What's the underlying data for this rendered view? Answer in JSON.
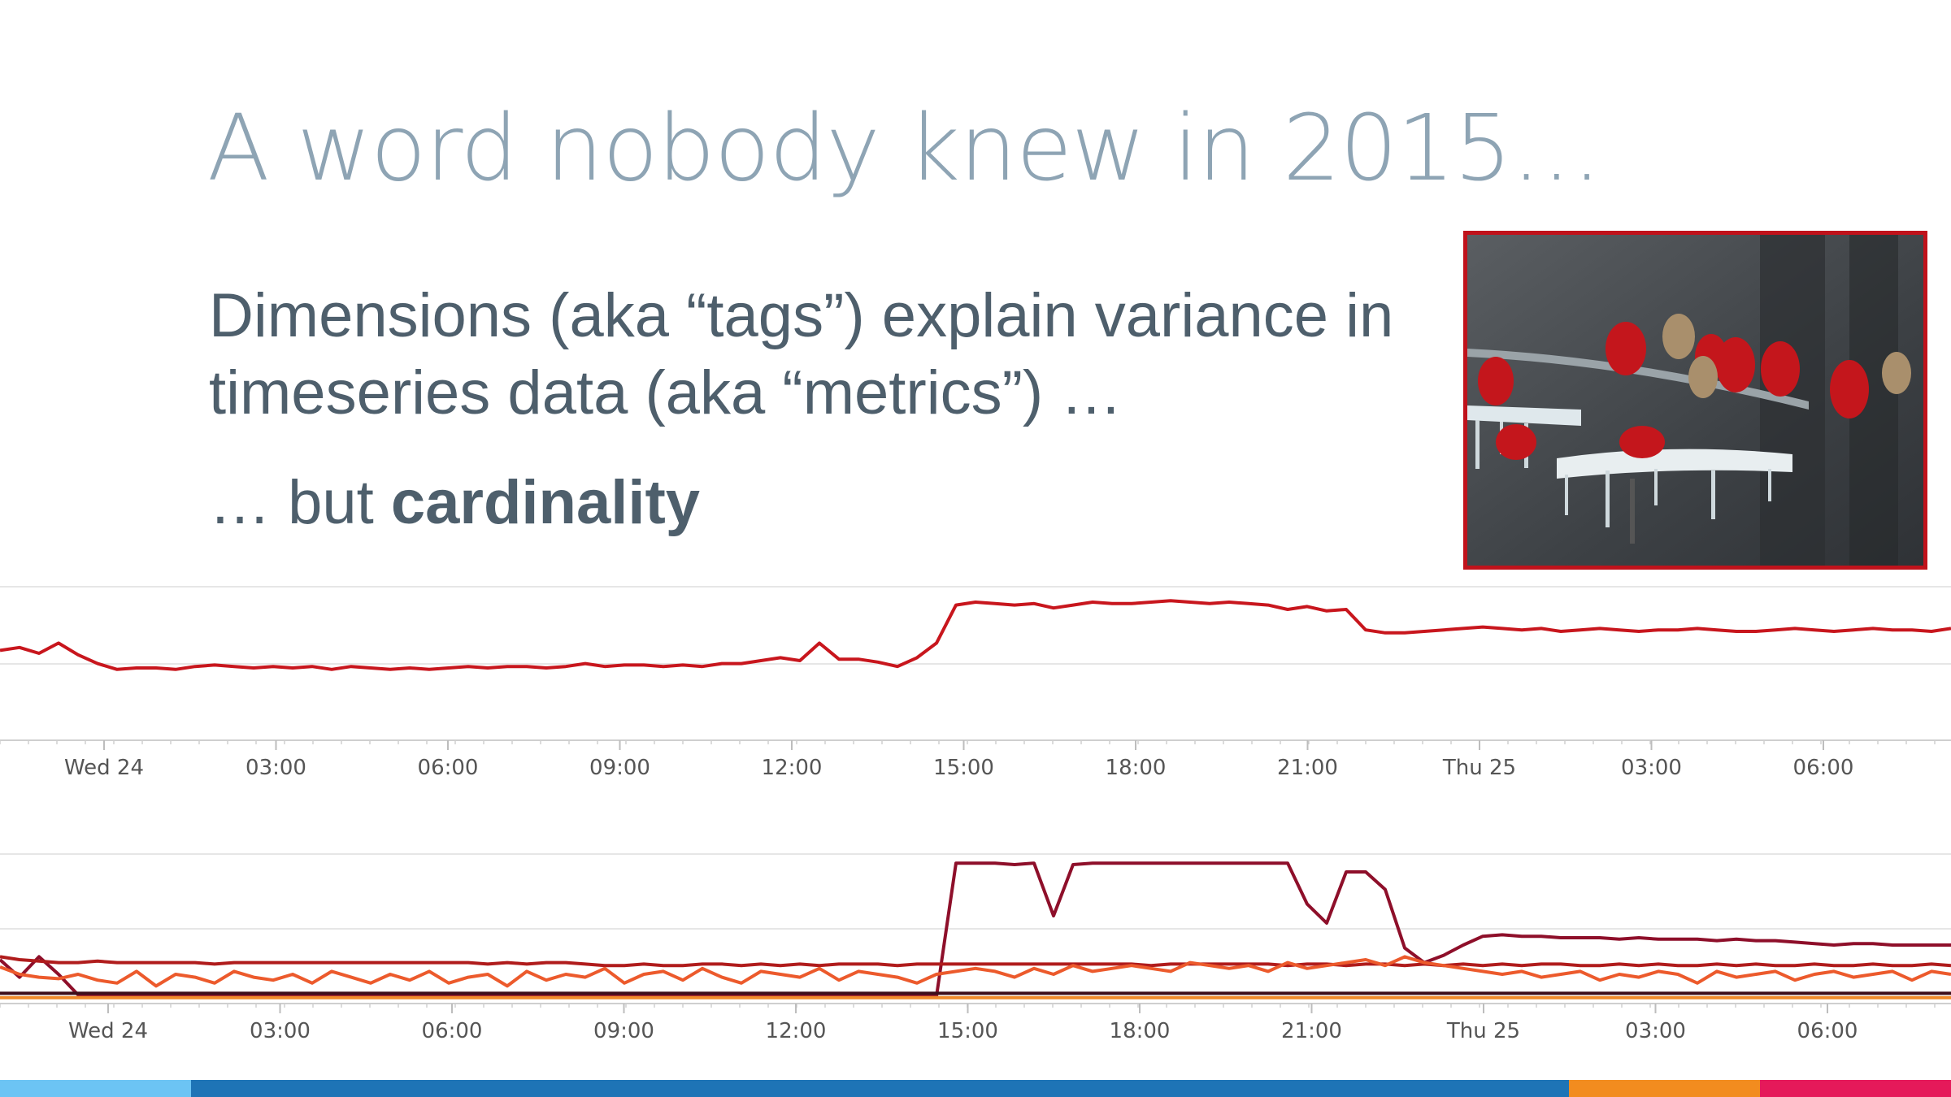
{
  "slide": {
    "title": "A word nobody knew in 2015…",
    "line1": "Dimensions (aka “tags”) explain variance in",
    "line2": "timeseries data (aka “metrics”) …",
    "line3_prefix": "… but ",
    "line3_bold": "cardinality"
  },
  "photo": {
    "icon": "cardinals-on-feeder-photo",
    "border_color": "#c0121b"
  },
  "chart_data": [
    {
      "type": "line",
      "x_tick_labels": [
        "Wed 24",
        "03:00",
        "06:00",
        "09:00",
        "12:00",
        "15:00",
        "18:00",
        "21:00",
        "Thu 25",
        "03:00",
        "06:00"
      ],
      "series": [
        {
          "color": "#c8161d",
          "values": [
            57,
            59,
            55,
            62,
            54,
            48,
            44,
            45,
            45,
            44,
            46,
            47,
            46,
            45,
            46,
            45,
            46,
            44,
            46,
            45,
            44,
            45,
            44,
            45,
            46,
            45,
            46,
            46,
            45,
            46,
            48,
            46,
            47,
            47,
            46,
            47,
            46,
            48,
            48,
            50,
            52,
            50,
            62,
            51,
            51,
            49,
            46,
            52,
            62,
            88,
            90,
            89,
            88,
            89,
            86,
            88,
            90,
            89,
            89,
            90,
            91,
            90,
            89,
            90,
            89,
            88,
            85,
            87,
            84,
            85,
            71,
            69,
            69,
            70,
            71,
            72,
            73,
            72,
            71,
            72,
            70,
            71,
            72,
            71,
            70,
            71,
            71,
            72,
            71,
            70,
            70,
            71,
            72,
            71,
            70,
            71,
            72,
            71,
            71,
            70,
            72
          ]
        }
      ]
    },
    {
      "type": "line",
      "x_tick_labels": [
        "Wed 24",
        "03:00",
        "06:00",
        "09:00",
        "12:00",
        "15:00",
        "18:00",
        "21:00",
        "Thu 25",
        "03:00",
        "06:00"
      ],
      "series": [
        {
          "color": "#8e0f2a",
          "values": [
            30,
            18,
            32,
            20,
            6,
            5,
            5,
            5,
            5,
            5,
            5,
            5,
            5,
            5,
            5,
            5,
            5,
            5,
            5,
            5,
            5,
            5,
            5,
            5,
            5,
            5,
            5,
            5,
            5,
            5,
            5,
            5,
            5,
            5,
            5,
            5,
            5,
            5,
            5,
            5,
            5,
            5,
            5,
            5,
            5,
            5,
            5,
            5,
            5,
            96,
            96,
            96,
            95,
            96,
            60,
            95,
            96,
            96,
            96,
            96,
            96,
            96,
            96,
            96,
            96,
            96,
            96,
            68,
            55,
            90,
            90,
            78,
            38,
            28,
            33,
            40,
            46,
            47,
            46,
            46,
            45,
            45,
            45,
            44,
            45,
            44,
            44,
            44,
            43,
            44,
            43,
            43,
            42,
            41,
            40,
            41,
            41,
            40,
            40,
            40,
            40
          ]
        },
        {
          "color": "#b01c1c",
          "values": [
            32,
            30,
            29,
            28,
            28,
            29,
            28,
            28,
            28,
            28,
            28,
            27,
            28,
            28,
            28,
            28,
            28,
            28,
            28,
            28,
            28,
            28,
            28,
            28,
            28,
            27,
            28,
            27,
            28,
            28,
            27,
            26,
            26,
            27,
            26,
            26,
            27,
            27,
            26,
            27,
            26,
            27,
            26,
            27,
            27,
            27,
            26,
            27,
            27,
            27,
            27,
            27,
            27,
            27,
            27,
            27,
            27,
            27,
            27,
            26,
            27,
            27,
            27,
            27,
            27,
            27,
            26,
            27,
            27,
            26,
            27,
            27,
            26,
            27,
            26,
            27,
            26,
            27,
            26,
            27,
            27,
            26,
            26,
            27,
            26,
            27,
            26,
            26,
            27,
            26,
            27,
            26,
            26,
            27,
            26,
            26,
            27,
            26,
            26,
            27,
            26
          ]
        },
        {
          "color": "#ec5a2c",
          "values": [
            25,
            20,
            18,
            17,
            20,
            16,
            14,
            22,
            12,
            20,
            18,
            14,
            22,
            18,
            16,
            20,
            14,
            22,
            18,
            14,
            20,
            16,
            22,
            14,
            18,
            20,
            12,
            22,
            16,
            20,
            18,
            24,
            14,
            20,
            22,
            16,
            24,
            18,
            14,
            22,
            20,
            18,
            24,
            16,
            22,
            20,
            18,
            14,
            20,
            22,
            24,
            22,
            18,
            24,
            20,
            26,
            22,
            24,
            26,
            24,
            22,
            28,
            26,
            24,
            26,
            22,
            28,
            24,
            26,
            28,
            30,
            26,
            32,
            28,
            26,
            24,
            22,
            20,
            22,
            18,
            20,
            22,
            16,
            20,
            18,
            22,
            20,
            14,
            22,
            18,
            20,
            22,
            16,
            20,
            22,
            18,
            20,
            22,
            16,
            22,
            20
          ]
        },
        {
          "color": "#f08a2a",
          "values": [
            4,
            4,
            4,
            4,
            4,
            4,
            4,
            4,
            4,
            4,
            4,
            4,
            4,
            4,
            4,
            4,
            4,
            4,
            4,
            4,
            4,
            4,
            4,
            4,
            4,
            4,
            4,
            4,
            4,
            4,
            4,
            4,
            4,
            4,
            4,
            4,
            4,
            4,
            4,
            4,
            4,
            4,
            4,
            4,
            4,
            4,
            4,
            4,
            4,
            4,
            4,
            4,
            4,
            4,
            4,
            4,
            4,
            4,
            4,
            4,
            4,
            4,
            4,
            4,
            4,
            4,
            4,
            4,
            4,
            4,
            4,
            4,
            4,
            4,
            4,
            4,
            4,
            4,
            4,
            4,
            4,
            4,
            4,
            4,
            4,
            4,
            4,
            4,
            4,
            4,
            4,
            4,
            4,
            4,
            4,
            4,
            4,
            4,
            4,
            4,
            4
          ]
        },
        {
          "color": "#3d0d1a",
          "values": [
            7,
            7,
            7,
            7,
            7,
            7,
            7,
            7,
            7,
            7,
            7,
            7,
            7,
            7,
            7,
            7,
            7,
            7,
            7,
            7,
            7,
            7,
            7,
            7,
            7,
            7,
            7,
            7,
            7,
            7,
            7,
            7,
            7,
            7,
            7,
            7,
            7,
            7,
            7,
            7,
            7,
            7,
            7,
            7,
            7,
            7,
            7,
            7,
            7,
            7,
            7,
            7,
            7,
            7,
            7,
            7,
            7,
            7,
            7,
            7,
            7,
            7,
            7,
            7,
            7,
            7,
            7,
            7,
            7,
            7,
            7,
            7,
            7,
            7,
            7,
            7,
            7,
            7,
            7,
            7,
            7,
            7,
            7,
            7,
            7,
            7,
            7,
            7,
            7,
            7,
            7,
            7,
            7,
            7,
            7,
            7,
            7,
            7,
            7,
            7,
            7
          ]
        }
      ]
    }
  ],
  "footer": {
    "colors": [
      "#6cc4f4",
      "#1e74b6",
      "#f28c1f",
      "#e5195a"
    ]
  }
}
